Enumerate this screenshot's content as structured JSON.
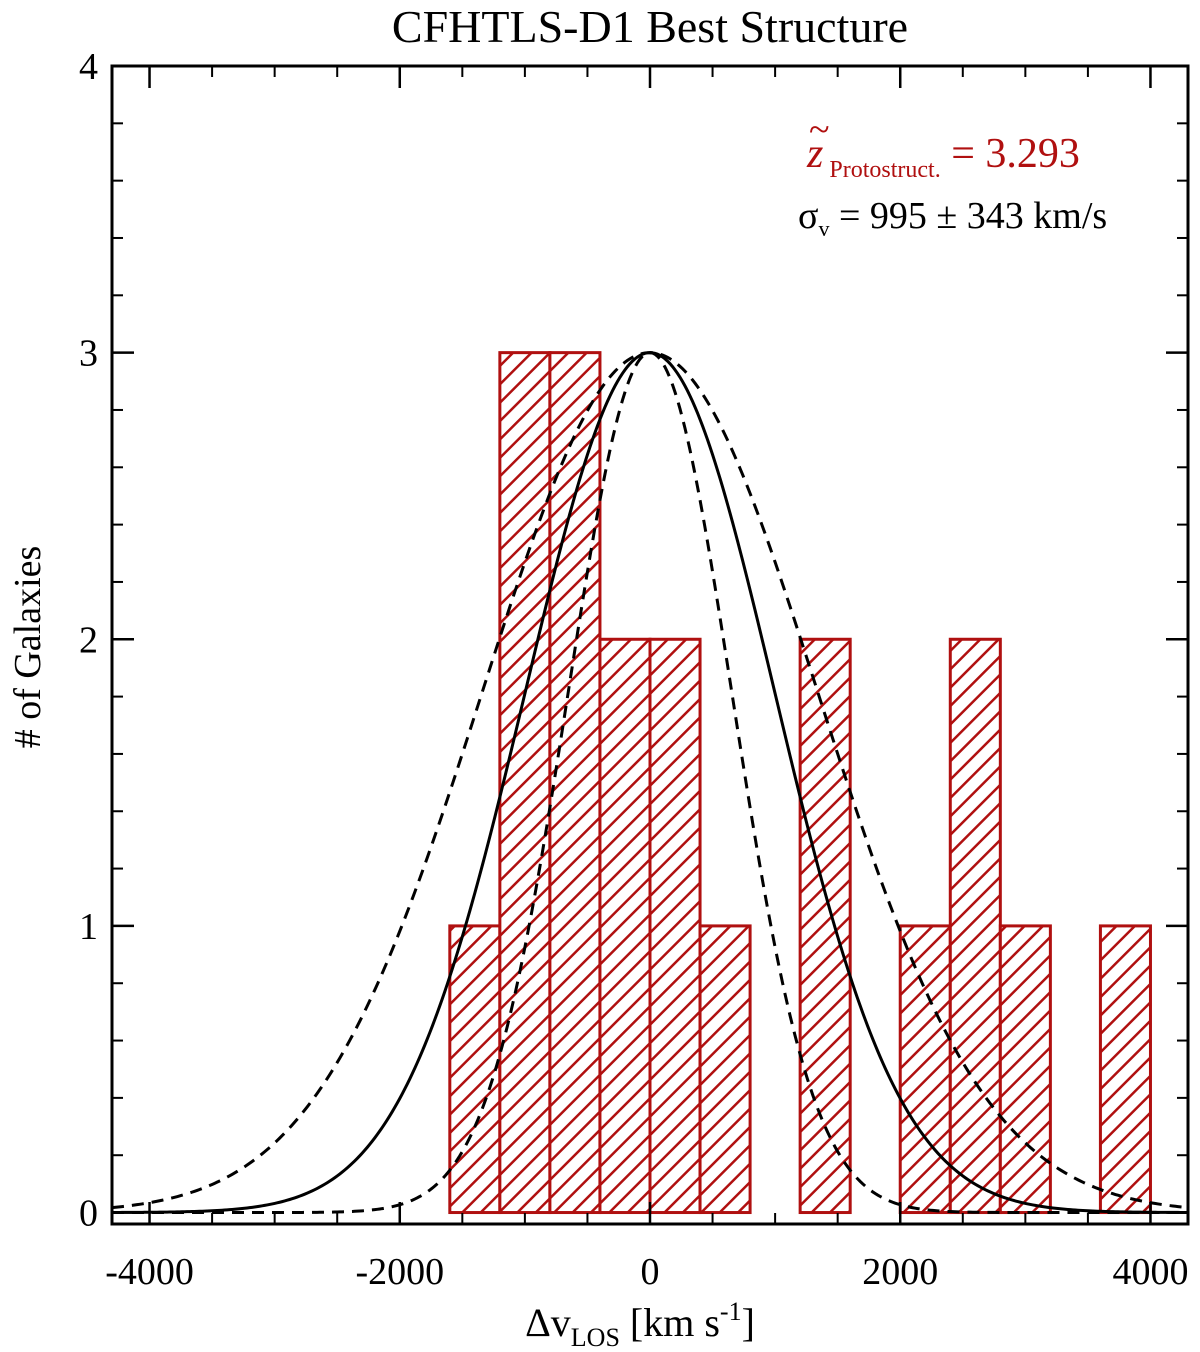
{
  "chart_data": {
    "type": "bar",
    "title": "CFHTLS-D1 Best Structure",
    "xlabel": {
      "main": "Δv",
      "sub": "LOS",
      "tail_before": " [km s",
      "sup": "-1",
      "tail_after": "]"
    },
    "ylabel": "# of Galaxies",
    "xlim": [
      -4300,
      4300
    ],
    "ylim": [
      -0.04,
      4.0
    ],
    "xticks": [
      -4000,
      -2000,
      0,
      2000,
      4000
    ],
    "xtick_labels": [
      "-4000",
      "-2000",
      "0",
      "2000",
      "4000"
    ],
    "yticks": [
      0,
      1,
      2,
      3,
      4
    ],
    "ytick_labels": [
      "0",
      "1",
      "2",
      "3",
      "4"
    ],
    "bin_width": 400,
    "bins": [
      {
        "x0": -1600,
        "x1": -1200,
        "count": 1
      },
      {
        "x0": -1200,
        "x1": -800,
        "count": 3
      },
      {
        "x0": -800,
        "x1": -400,
        "count": 3
      },
      {
        "x0": -400,
        "x1": 0,
        "count": 2
      },
      {
        "x0": 0,
        "x1": 400,
        "count": 2
      },
      {
        "x0": 400,
        "x1": 800,
        "count": 1
      },
      {
        "x0": 800,
        "x1": 1200,
        "count": 0
      },
      {
        "x0": 1200,
        "x1": 1600,
        "count": 2
      },
      {
        "x0": 1600,
        "x1": 2000,
        "count": 0
      },
      {
        "x0": 2000,
        "x1": 2400,
        "count": 1
      },
      {
        "x0": 2400,
        "x1": 2800,
        "count": 2
      },
      {
        "x0": 2800,
        "x1": 3200,
        "count": 1
      },
      {
        "x0": 3200,
        "x1": 3600,
        "count": 0
      },
      {
        "x0": 3600,
        "x1": 4000,
        "count": 1
      }
    ],
    "curves": [
      {
        "style": "solid",
        "amplitude": 3,
        "mean": 0,
        "sigma": 995
      },
      {
        "style": "dashed",
        "amplitude": 3,
        "mean": 0,
        "sigma": 652
      },
      {
        "style": "dashed",
        "amplitude": 3,
        "mean": 0,
        "sigma": 1338
      }
    ],
    "annotations": {
      "redshift": {
        "symbol": "z",
        "tilde": "~",
        "sub": "Protostruct.",
        "value": " = 3.293"
      },
      "sigma": {
        "symbol": "σ",
        "sub": "v",
        "value": " = 995 ± 343 km/s"
      }
    },
    "grid": false,
    "legend": "none"
  },
  "colors": {
    "histogram": "#b01010",
    "annotation_redshift": "#b01010",
    "curves": "#000000",
    "axes": "#000000"
  }
}
